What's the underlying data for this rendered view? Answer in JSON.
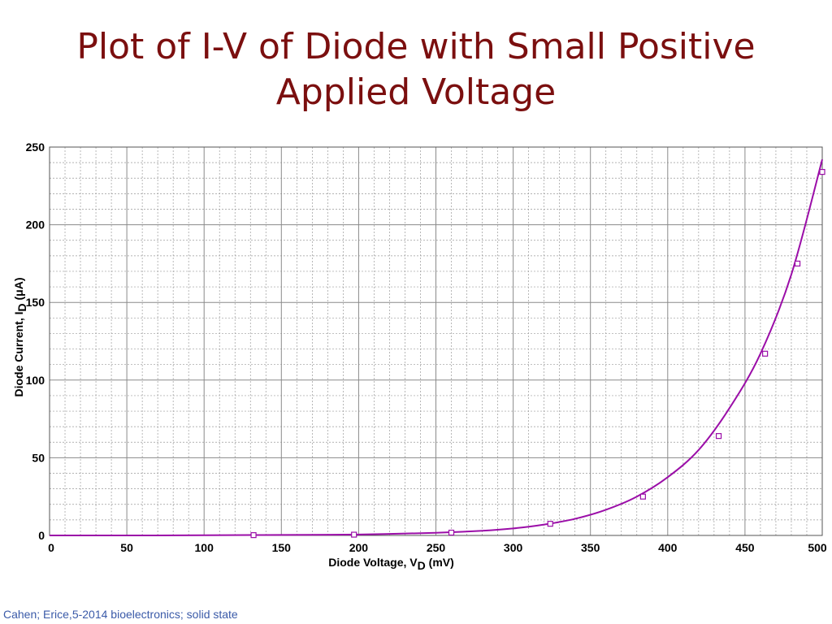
{
  "slide": {
    "title_line1": "Plot of I-V of Diode with Small Positive",
    "title_line2": "Applied Voltage",
    "footer": "Cahen; Erice,5-2014 bioelectronics; solid state",
    "title_color": "#7b0f0f",
    "footer_color": "#3a5aa8"
  },
  "chart_data": {
    "type": "line",
    "title": "",
    "xlabel": "Diode Voltage, V",
    "xlabel_sub": "D",
    "xlabel_unit": " (mV)",
    "ylabel": "Diode Current, I",
    "ylabel_sub": "D",
    "ylabel_unit": "  (μA)",
    "xlim": [
      0,
      500
    ],
    "ylim": [
      0,
      250
    ],
    "xticks": [
      0,
      50,
      100,
      150,
      200,
      250,
      300,
      350,
      400,
      450,
      500
    ],
    "yticks": [
      0,
      50,
      100,
      150,
      200,
      250
    ],
    "grid": true,
    "line_color": "#9b0ea8",
    "series": [
      {
        "curve": {
          "x": [
            0,
            50,
            100,
            130,
            150,
            200,
            250,
            280,
            300,
            320,
            340,
            360,
            380,
            400,
            420,
            440,
            460,
            480,
            500
          ],
          "y": [
            0,
            0,
            0.1,
            0.25,
            0.3,
            0.6,
            1.7,
            3.0,
            4.5,
            7.0,
            10.7,
            16.5,
            25.0,
            37.5,
            55.0,
            82.0,
            117.0,
            168.0,
            242.0
          ]
        },
        "markers": {
          "x": [
            132,
            197,
            260,
            324,
            384,
            433,
            463,
            484,
            500
          ],
          "y": [
            0.2,
            0.5,
            1.8,
            7.5,
            25,
            64,
            117,
            175,
            234
          ]
        }
      }
    ]
  }
}
